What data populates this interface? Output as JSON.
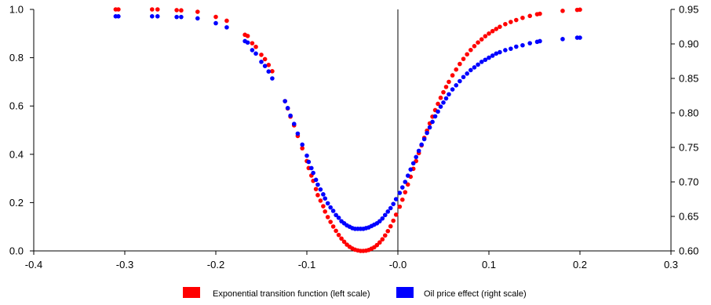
{
  "chart_data": {
    "type": "scatter",
    "title": "",
    "xlabel": "",
    "ylabel": "",
    "y2label": "",
    "xlim": [
      -0.4,
      0.3
    ],
    "ylim": [
      0.0,
      1.0
    ],
    "y2lim": [
      0.6,
      0.95
    ],
    "x_ticks": [
      "-0.4",
      "-0.3",
      "-0.2",
      "-0.1",
      "-0.0",
      "0.1",
      "0.2",
      "0.3"
    ],
    "y_ticks": [
      "0.0",
      "0.2",
      "0.4",
      "0.6",
      "0.8",
      "1.0"
    ],
    "y2_ticks": [
      "0.60",
      "0.65",
      "0.70",
      "0.75",
      "0.80",
      "0.85",
      "0.90",
      "0.95"
    ],
    "grid": false,
    "vertical_reference_line_x": 0.0,
    "legend_position": "bottom-center",
    "x_values": [
      -0.31,
      -0.307,
      -0.27,
      -0.264,
      -0.243,
      -0.238,
      -0.22,
      -0.2,
      -0.188,
      -0.168,
      -0.165,
      -0.16,
      -0.156,
      -0.15,
      -0.146,
      -0.142,
      -0.138,
      -0.124,
      -0.121,
      -0.118,
      -0.114,
      -0.11,
      -0.105,
      -0.1,
      -0.098,
      -0.095,
      -0.093,
      -0.09,
      -0.088,
      -0.085,
      -0.082,
      -0.08,
      -0.077,
      -0.074,
      -0.071,
      -0.068,
      -0.065,
      -0.062,
      -0.059,
      -0.056,
      -0.053,
      -0.05,
      -0.047,
      -0.044,
      -0.041,
      -0.038,
      -0.035,
      -0.032,
      -0.029,
      -0.026,
      -0.023,
      -0.02,
      -0.017,
      -0.014,
      -0.011,
      -0.008,
      -0.005,
      -0.002,
      0.002,
      0.005,
      0.008,
      0.011,
      0.014,
      0.017,
      0.02,
      0.023,
      0.026,
      0.029,
      0.032,
      0.035,
      0.038,
      0.041,
      0.044,
      0.047,
      0.05,
      0.053,
      0.056,
      0.06,
      0.064,
      0.068,
      0.072,
      0.076,
      0.08,
      0.084,
      0.088,
      0.092,
      0.096,
      0.1,
      0.104,
      0.108,
      0.112,
      0.118,
      0.124,
      0.13,
      0.137,
      0.145,
      0.153,
      0.156,
      0.181,
      0.197,
      0.2
    ],
    "series": [
      {
        "name": "Exponential transition function (left scale)",
        "axis": "left",
        "color": "#ff0000",
        "values": [
          1.0,
          1.0,
          1.0,
          1.0,
          0.997,
          0.996,
          0.99,
          0.969,
          0.953,
          0.895,
          0.89,
          0.86,
          0.845,
          0.812,
          0.794,
          0.77,
          0.744,
          0.62,
          0.59,
          0.556,
          0.52,
          0.476,
          0.425,
          0.372,
          0.343,
          0.312,
          0.29,
          0.256,
          0.231,
          0.208,
          0.185,
          0.163,
          0.14,
          0.12,
          0.101,
          0.083,
          0.066,
          0.051,
          0.038,
          0.026,
          0.017,
          0.01,
          0.005,
          0.002,
          0.0,
          0.0,
          0.001,
          0.004,
          0.009,
          0.015,
          0.024,
          0.035,
          0.048,
          0.064,
          0.082,
          0.102,
          0.125,
          0.15,
          0.183,
          0.212,
          0.243,
          0.275,
          0.307,
          0.34,
          0.372,
          0.405,
          0.437,
          0.468,
          0.498,
          0.528,
          0.556,
          0.583,
          0.609,
          0.634,
          0.657,
          0.679,
          0.7,
          0.727,
          0.751,
          0.774,
          0.795,
          0.814,
          0.832,
          0.848,
          0.863,
          0.876,
          0.889,
          0.9,
          0.91,
          0.919,
          0.928,
          0.939,
          0.948,
          0.956,
          0.965,
          0.973,
          0.98,
          0.982,
          0.994,
          0.998,
          0.999
        ]
      },
      {
        "name": "Oil price effect (right scale)",
        "axis": "right",
        "color": "#0000ff",
        "values": [
          0.94,
          0.94,
          0.94,
          0.94,
          0.939,
          0.939,
          0.937,
          0.93,
          0.924,
          0.904,
          0.902,
          0.891,
          0.886,
          0.874,
          0.868,
          0.86,
          0.85,
          0.817,
          0.807,
          0.796,
          0.784,
          0.77,
          0.754,
          0.738,
          0.729,
          0.72,
          0.713,
          0.703,
          0.696,
          0.689,
          0.682,
          0.676,
          0.669,
          0.663,
          0.658,
          0.652,
          0.648,
          0.643,
          0.64,
          0.637,
          0.635,
          0.633,
          0.632,
          0.632,
          0.632,
          0.632,
          0.633,
          0.634,
          0.636,
          0.638,
          0.64,
          0.643,
          0.647,
          0.652,
          0.657,
          0.662,
          0.668,
          0.675,
          0.684,
          0.692,
          0.7,
          0.709,
          0.718,
          0.727,
          0.736,
          0.745,
          0.754,
          0.762,
          0.771,
          0.779,
          0.787,
          0.795,
          0.802,
          0.809,
          0.815,
          0.821,
          0.827,
          0.834,
          0.84,
          0.846,
          0.852,
          0.857,
          0.862,
          0.866,
          0.87,
          0.874,
          0.877,
          0.88,
          0.883,
          0.886,
          0.888,
          0.891,
          0.893,
          0.896,
          0.898,
          0.901,
          0.903,
          0.904,
          0.907,
          0.909,
          0.909
        ]
      }
    ]
  },
  "legend": {
    "items": [
      {
        "label": "Exponential transition function (left scale)",
        "color": "#ff0000"
      },
      {
        "label": "Oil price effect (right scale)",
        "color": "#0000ff"
      }
    ]
  }
}
